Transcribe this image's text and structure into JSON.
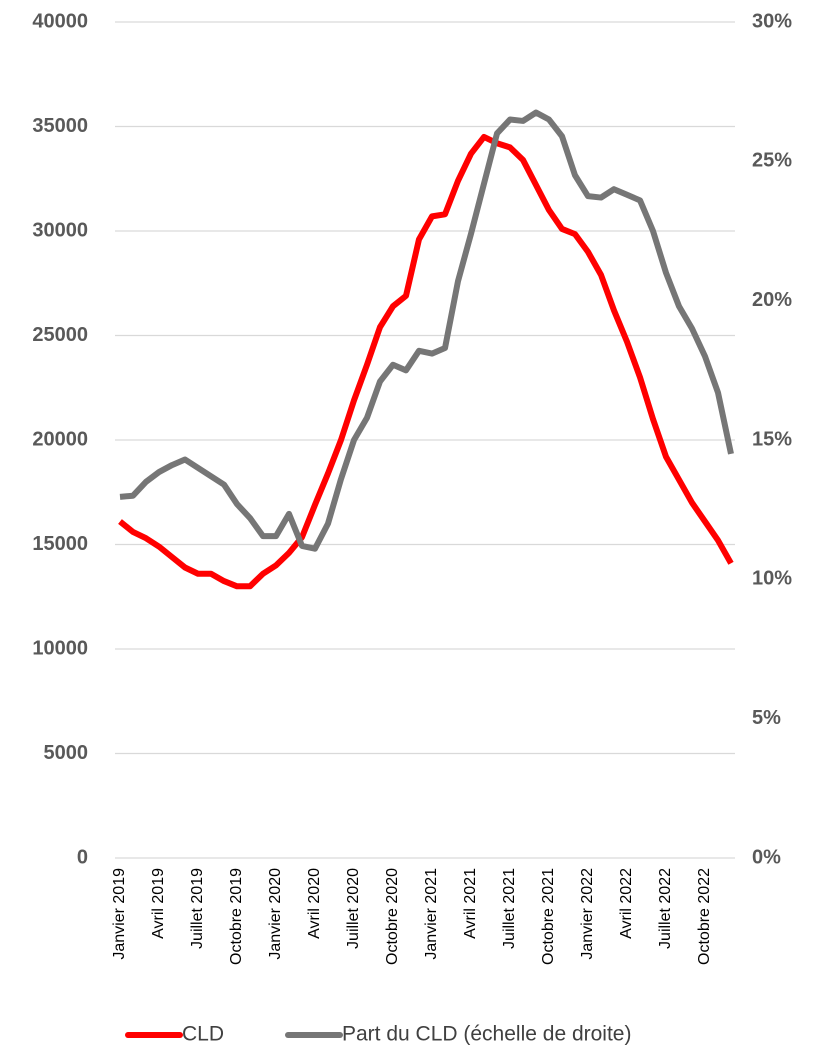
{
  "chart_data": {
    "type": "line",
    "categories": [
      "Janvier 2019",
      null,
      null,
      "Avril 2019",
      null,
      null,
      "Juillet 2019",
      null,
      null,
      "Octobre 2019",
      null,
      null,
      "Janvier 2020",
      null,
      null,
      "Avril 2020",
      null,
      null,
      "Juillet 2020",
      null,
      null,
      "Octobre 2020",
      null,
      null,
      "Janvier 2021",
      null,
      null,
      "Avril 2021",
      null,
      null,
      "Juillet 2021",
      null,
      null,
      "Octobre 2021",
      null,
      null,
      "Janvier 2022",
      null,
      null,
      "Avril 2022",
      null,
      null,
      "Juillet 2022",
      null,
      null,
      "Octobre 2022",
      null,
      null
    ],
    "series": [
      {
        "name": "CLD",
        "color": "#ff0000",
        "values": [
          16100,
          15600,
          15300,
          14900,
          14400,
          13900,
          13600,
          13600,
          13250,
          13000,
          13000,
          13600,
          14000,
          14600,
          15350,
          16900,
          18400,
          20000,
          21900,
          23600,
          25400,
          26400,
          26900,
          29600,
          30700,
          30800,
          32400,
          33700,
          34500,
          34200,
          34000,
          33400,
          32200,
          31000,
          30100,
          29850,
          29000,
          27900,
          26200,
          24700,
          23000,
          21000,
          19200,
          18100,
          17000,
          16100,
          15200,
          14100
        ]
      },
      {
        "name": "Part du CLD (échelle de droite)",
        "color": "#767676",
        "axis": "y2",
        "values": [
          12.96,
          13.0,
          13.5,
          13.85,
          14.1,
          14.3,
          14.0,
          13.7,
          13.4,
          12.7,
          12.2,
          11.55,
          11.55,
          12.35,
          11.2,
          11.1,
          12.0,
          13.6,
          15.0,
          15.8,
          17.1,
          17.7,
          17.5,
          18.2,
          18.1,
          18.3,
          20.7,
          22.4,
          24.2,
          26.0,
          26.5,
          26.45,
          26.75,
          26.5,
          25.9,
          24.5,
          23.75,
          23.7,
          24.0,
          23.8,
          23.6,
          22.5,
          21.0,
          19.8,
          19.0,
          18.0,
          16.7,
          14.5
        ]
      }
    ],
    "ylim": [
      0,
      40000
    ],
    "yticks": [
      0,
      5000,
      10000,
      15000,
      20000,
      25000,
      30000,
      35000,
      40000
    ],
    "y2lim": [
      0,
      30
    ],
    "y2ticks": [
      {
        "value": 0,
        "label": "0%"
      },
      {
        "value": 5,
        "label": "5%"
      },
      {
        "value": 10,
        "label": "10%"
      },
      {
        "value": 15,
        "label": "15%"
      },
      {
        "value": 20,
        "label": "20%"
      },
      {
        "value": 25,
        "label": "25%"
      },
      {
        "value": 30,
        "label": "30%"
      }
    ],
    "grid": true,
    "legend": "bottom"
  }
}
